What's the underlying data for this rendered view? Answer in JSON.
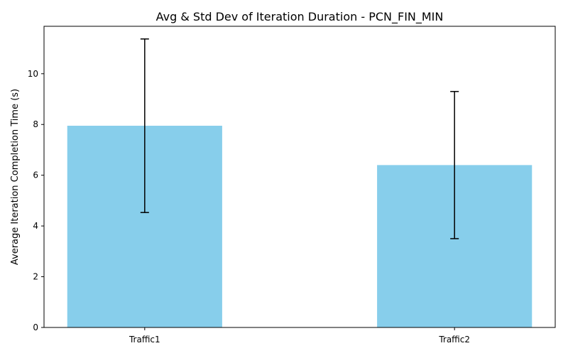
{
  "chart_data": {
    "type": "bar",
    "title": "Avg & Std Dev of Iteration Duration - PCN_FIN_MIN",
    "xlabel": "",
    "ylabel": "Average Iteration Completion Time (s)",
    "categories": [
      "Traffic1",
      "Traffic2"
    ],
    "values": [
      7.95,
      6.4
    ],
    "errors": [
      3.42,
      2.9
    ],
    "ylim": [
      0,
      11.87
    ],
    "yticks": [
      0,
      2,
      4,
      6,
      8,
      10
    ],
    "grid": false,
    "bar_color": "#87CEEB",
    "error_color": "#000000"
  }
}
